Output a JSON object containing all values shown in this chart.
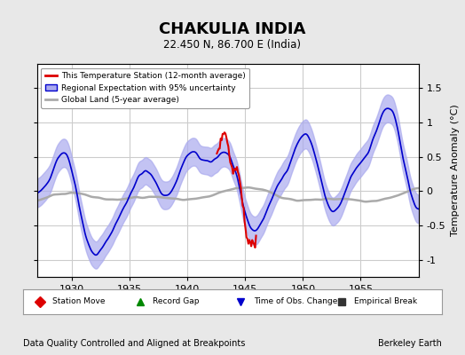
{
  "title": "CHAKULIA INDIA",
  "subtitle": "22.450 N, 86.700 E (India)",
  "xlabel_bottom": "Data Quality Controlled and Aligned at Breakpoints",
  "xlabel_right": "Berkeley Earth",
  "ylabel": "Temperature Anomaly (°C)",
  "xlim": [
    1927,
    1960
  ],
  "ylim": [
    -1.25,
    1.85
  ],
  "yticks": [
    -1,
    -0.5,
    0,
    0.5,
    1,
    1.5
  ],
  "xticks": [
    1930,
    1935,
    1940,
    1945,
    1950,
    1955
  ],
  "bg_color": "#e8e8e8",
  "plot_bg_color": "#ffffff",
  "grid_color": "#cccccc",
  "regional_color": "#0000cc",
  "regional_fill_color": "#aaaaee",
  "global_color": "#aaaaaa",
  "station_color": "#dd0000",
  "legend1_items": [
    {
      "label": "This Temperature Station (12-month average)",
      "color": "#dd0000",
      "lw": 2
    },
    {
      "label": "Regional Expectation with 95% uncertainty",
      "color": "#0000cc",
      "lw": 2
    },
    {
      "label": "Global Land (5-year average)",
      "color": "#aaaaaa",
      "lw": 2
    }
  ],
  "legend2_items": [
    {
      "label": "Station Move",
      "marker": "D",
      "color": "#dd0000"
    },
    {
      "label": "Record Gap",
      "marker": "^",
      "color": "#008800"
    },
    {
      "label": "Time of Obs. Change",
      "marker": "v",
      "color": "#0000cc"
    },
    {
      "label": "Empirical Break",
      "marker": "s",
      "color": "#333333"
    }
  ],
  "seed": 42,
  "x_start": 1927.0,
  "x_end": 1960.0,
  "n_points": 400,
  "station_x_start": 1942.5,
  "station_x_end": 1946.0
}
